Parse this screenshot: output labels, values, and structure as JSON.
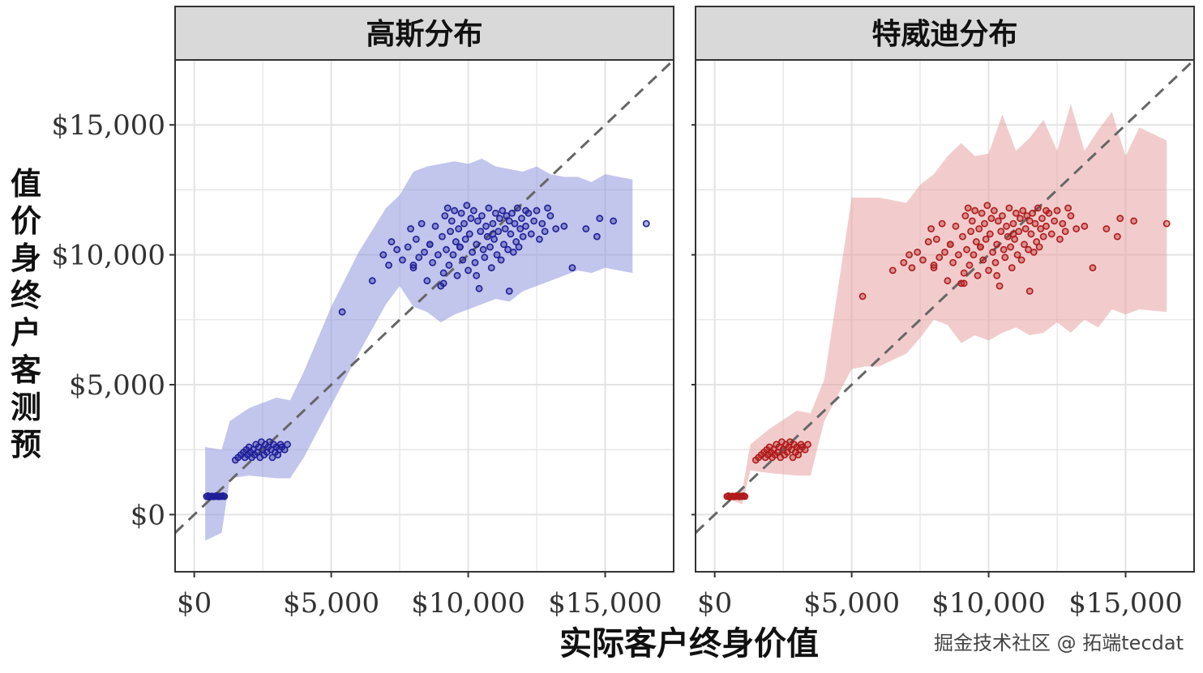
{
  "chart_data": {
    "type": "scatter",
    "xlabel": "实际客户终身价值",
    "ylabel": "值价身终户客测预",
    "xlim": [
      -700,
      17500
    ],
    "ylim": [
      -2200,
      17500
    ],
    "x_ticks": [
      0,
      5000,
      10000,
      15000
    ],
    "y_ticks": [
      0,
      5000,
      10000,
      15000
    ],
    "x_tick_labels": [
      "$0",
      "$5,000",
      "$10,000",
      "$15,000"
    ],
    "y_tick_labels": [
      "$0",
      "$5,000",
      "$10,000",
      "$15,000"
    ],
    "grid": true,
    "reference_line": {
      "style": "dashed",
      "slope": 1,
      "intercept": 0,
      "color": "#666666"
    },
    "watermark": "掘金技术社区 @ 拓端tecdat",
    "panels": [
      {
        "strip_label": "高斯分布",
        "point_color": "#1f1f99",
        "band_color": "#8f95dd",
        "band": {
          "x": [
            400,
            1000,
            1300,
            2000,
            3000,
            3500,
            4000,
            5000,
            6000,
            7000,
            7500,
            8000,
            8500,
            9000,
            9500,
            10000,
            10500,
            11000,
            11500,
            12000,
            12500,
            13000,
            13500,
            14000,
            14500,
            15000,
            16000
          ],
          "lower": [
            -1000,
            -700,
            1400,
            1500,
            1400,
            1400,
            2200,
            4200,
            6200,
            8100,
            8800,
            8000,
            7800,
            7400,
            7700,
            7900,
            8100,
            8300,
            8200,
            8600,
            8800,
            9000,
            9200,
            9400,
            9300,
            9500,
            9300
          ],
          "upper": [
            2600,
            2500,
            3600,
            4100,
            4500,
            4400,
            5500,
            8000,
            10100,
            11800,
            12300,
            13200,
            13400,
            13500,
            13600,
            13500,
            13700,
            13400,
            13300,
            13200,
            13400,
            13100,
            13000,
            13000,
            12800,
            13100,
            12900
          ]
        },
        "points": {
          "x": [
            450,
            500,
            550,
            600,
            650,
            700,
            750,
            800,
            850,
            900,
            950,
            1000,
            1050,
            1100,
            1500,
            1600,
            1700,
            1800,
            1850,
            1900,
            1950,
            2000,
            2050,
            2100,
            2150,
            2200,
            2250,
            2300,
            2350,
            2400,
            2450,
            2500,
            2550,
            2600,
            2650,
            2700,
            2750,
            2800,
            2850,
            2900,
            2950,
            3000,
            3050,
            3100,
            3150,
            3200,
            3300,
            3400,
            5400,
            6500,
            6900,
            7100,
            7200,
            7400,
            7600,
            7800,
            7900,
            8000,
            8100,
            8200,
            8300,
            8400,
            8500,
            8600,
            8700,
            8800,
            8900,
            9000,
            9050,
            9100,
            9150,
            9200,
            9250,
            9300,
            9350,
            9400,
            9450,
            9500,
            9550,
            9600,
            9650,
            9700,
            9750,
            9800,
            9850,
            9900,
            9950,
            10000,
            10050,
            10100,
            10150,
            10200,
            10250,
            10300,
            10350,
            10400,
            10450,
            10500,
            10550,
            10600,
            10650,
            10700,
            10750,
            10800,
            10850,
            10900,
            10950,
            11000,
            11050,
            11100,
            11150,
            11200,
            11250,
            11300,
            11350,
            11400,
            11450,
            11500,
            11550,
            11600,
            11650,
            11700,
            11750,
            11800,
            11850,
            11900,
            11950,
            12000,
            12100,
            12200,
            12300,
            12400,
            12500,
            12600,
            12700,
            12800,
            12900,
            13000,
            13200,
            13500,
            13800,
            14300,
            14700,
            14800,
            15300,
            16500,
            8000,
            8600,
            9100,
            9700,
            10300,
            10900,
            11500,
            12100
          ],
          "y": [
            700,
            720,
            680,
            700,
            710,
            690,
            700,
            720,
            700,
            690,
            710,
            700,
            720,
            700,
            2100,
            2200,
            2300,
            2400,
            2200,
            2500,
            2300,
            2600,
            2400,
            2200,
            2500,
            2300,
            2700,
            2400,
            2600,
            2200,
            2800,
            2500,
            2300,
            2700,
            2400,
            2600,
            2800,
            2500,
            2200,
            2700,
            2400,
            2600,
            2300,
            2500,
            2700,
            2600,
            2500,
            2700,
            7800,
            9000,
            10000,
            9600,
            10500,
            10200,
            9800,
            10300,
            11000,
            9500,
            10600,
            9900,
            11200,
            10100,
            9000,
            10400,
            9700,
            11100,
            10000,
            8800,
            10700,
            9300,
            11500,
            10200,
            11800,
            9600,
            10900,
            11300,
            10000,
            11700,
            10500,
            9200,
            11000,
            10300,
            11600,
            9800,
            11200,
            10600,
            11900,
            9400,
            10800,
            11400,
            10100,
            11700,
            9700,
            10400,
            11300,
            8700,
            10900,
            11500,
            10200,
            9900,
            11100,
            10700,
            11800,
            10300,
            9500,
            11200,
            10600,
            11600,
            10000,
            10900,
            11400,
            9800,
            11700,
            10400,
            11000,
            11500,
            10200,
            11300,
            10800,
            11600,
            10100,
            11200,
            10500,
            11800,
            10300,
            11000,
            11400,
            10700,
            11100,
            11600,
            10800,
            11300,
            11700,
            10600,
            11200,
            10900,
            11800,
            11500,
            11000,
            11100,
            9500,
            11000,
            10700,
            11400,
            11300,
            11200,
            9600,
            10400,
            8900,
            10300,
            9200,
            10800,
            8600,
            11700
          ]
        }
      },
      {
        "strip_label": "特威迪分布",
        "point_color": "#b01a1a",
        "band_color": "#e7a3a3",
        "band": {
          "x": [
            500,
            1000,
            1300,
            2000,
            3000,
            3500,
            4000,
            5000,
            5500,
            6000,
            7000,
            7500,
            8000,
            8500,
            9000,
            9500,
            10000,
            10500,
            11000,
            11500,
            12000,
            12500,
            13000,
            13500,
            14000,
            14500,
            15000,
            15500,
            16500
          ],
          "lower": [
            600,
            400,
            1700,
            1600,
            1500,
            1500,
            3600,
            5600,
            5700,
            5700,
            6200,
            6800,
            7500,
            7300,
            6600,
            6900,
            6700,
            7000,
            7200,
            6900,
            7000,
            7400,
            7000,
            7500,
            7200,
            7900,
            7700,
            7900,
            7800
          ],
          "upper": [
            800,
            900,
            2700,
            3300,
            4000,
            3900,
            5200,
            12200,
            12200,
            12200,
            12000,
            12700,
            13100,
            13800,
            14300,
            13800,
            13900,
            15400,
            14000,
            14500,
            15200,
            14000,
            15800,
            14000,
            14800,
            15500,
            13800,
            14900,
            14400
          ]
        },
        "points": {
          "x": [
            450,
            500,
            550,
            600,
            650,
            700,
            750,
            800,
            850,
            900,
            950,
            1000,
            1050,
            1100,
            1500,
            1600,
            1700,
            1800,
            1850,
            1900,
            1950,
            2000,
            2050,
            2100,
            2150,
            2200,
            2250,
            2300,
            2350,
            2400,
            2450,
            2500,
            2550,
            2600,
            2650,
            2700,
            2750,
            2800,
            2850,
            2900,
            2950,
            3000,
            3050,
            3100,
            3150,
            3200,
            3300,
            3400,
            5400,
            6500,
            6900,
            7100,
            7200,
            7400,
            7600,
            7800,
            7900,
            8000,
            8100,
            8200,
            8300,
            8400,
            8500,
            8600,
            8700,
            8800,
            8900,
            9000,
            9050,
            9100,
            9150,
            9200,
            9250,
            9300,
            9350,
            9400,
            9450,
            9500,
            9550,
            9600,
            9650,
            9700,
            9750,
            9800,
            9850,
            9900,
            9950,
            10000,
            10050,
            10100,
            10150,
            10200,
            10250,
            10300,
            10350,
            10400,
            10450,
            10500,
            10550,
            10600,
            10650,
            10700,
            10750,
            10800,
            10850,
            10900,
            10950,
            11000,
            11050,
            11100,
            11150,
            11200,
            11250,
            11300,
            11350,
            11400,
            11450,
            11500,
            11550,
            11600,
            11650,
            11700,
            11750,
            11800,
            11850,
            11900,
            11950,
            12000,
            12100,
            12200,
            12300,
            12400,
            12500,
            12600,
            12700,
            12800,
            12900,
            13000,
            13200,
            13500,
            13800,
            14300,
            14700,
            14800,
            15300,
            16500,
            8000,
            8600,
            9100,
            9700,
            10300,
            10900,
            11500,
            12100
          ],
          "y": [
            700,
            720,
            680,
            700,
            710,
            690,
            700,
            720,
            700,
            690,
            710,
            700,
            720,
            700,
            2100,
            2200,
            2300,
            2400,
            2200,
            2500,
            2300,
            2600,
            2400,
            2200,
            2500,
            2300,
            2700,
            2400,
            2600,
            2200,
            2800,
            2500,
            2300,
            2700,
            2400,
            2600,
            2800,
            2500,
            2200,
            2700,
            2400,
            2600,
            2300,
            2500,
            2700,
            2600,
            2500,
            2700,
            8400,
            9400,
            9700,
            10000,
            9500,
            10100,
            9800,
            10500,
            11000,
            9500,
            10600,
            9900,
            11200,
            10100,
            9000,
            10400,
            9700,
            11100,
            10000,
            8900,
            10700,
            9300,
            11500,
            10200,
            11800,
            9600,
            10900,
            11300,
            10000,
            11700,
            10500,
            9200,
            11000,
            10300,
            11600,
            9800,
            11200,
            10600,
            11900,
            9400,
            10800,
            11400,
            10100,
            11700,
            9700,
            10400,
            11300,
            8800,
            10900,
            11500,
            10200,
            9900,
            11100,
            10700,
            11800,
            10300,
            9500,
            11200,
            10600,
            11600,
            10000,
            10900,
            11400,
            9800,
            11700,
            10400,
            11000,
            11500,
            10200,
            11300,
            10800,
            11600,
            10100,
            11200,
            10500,
            11800,
            10300,
            11000,
            11400,
            10700,
            11100,
            11600,
            10800,
            11300,
            11700,
            10600,
            11200,
            10900,
            11800,
            11500,
            11000,
            11100,
            9500,
            11000,
            10700,
            11400,
            11300,
            11200,
            9600,
            10400,
            8900,
            10300,
            9200,
            10800,
            8600,
            11700
          ]
        }
      }
    ]
  }
}
